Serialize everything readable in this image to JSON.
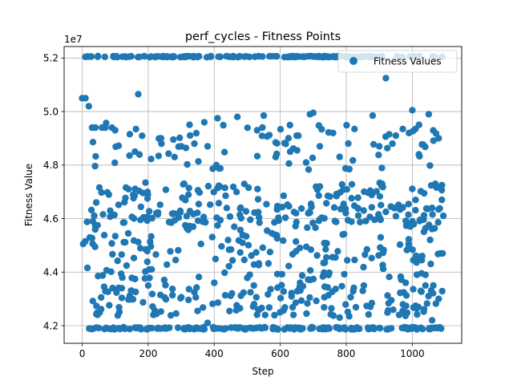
{
  "chart_data": {
    "type": "scatter",
    "title": "perf_cycles - Fitness Points",
    "xlabel": "Step",
    "ylabel": "Fitness Value",
    "offset_label": "1e7",
    "xlim": [
      -54.7,
      1149.7
    ],
    "ylim": [
      4.134,
      5.243
    ],
    "xticks": [
      0,
      200,
      400,
      600,
      800,
      1000
    ],
    "yticks": [
      4.2,
      4.4,
      4.6,
      4.8,
      5.0,
      5.2
    ],
    "ytick_labels": [
      "4.2",
      "4.4",
      "4.6",
      "4.8",
      "5.0",
      "5.2"
    ],
    "grid": true,
    "legend": {
      "position": "upper right",
      "entries": [
        "Fitness Values"
      ]
    },
    "series": [
      {
        "name": "Fitness Values",
        "color": "#1f77b4",
        "bands": [
          {
            "y": 5.205,
            "x0": 0,
            "x1": 1095,
            "n": 150,
            "jitter": 0.002
          },
          {
            "y": 4.19,
            "x0": 15,
            "x1": 1095,
            "n": 170,
            "jitter": 0.004
          },
          {
            "y": 4.295,
            "x0": 30,
            "x1": 1095,
            "n": 150,
            "jitter": 0.06
          },
          {
            "y": 4.5,
            "x0": 0,
            "x1": 1095,
            "n": 200,
            "jitter": 0.13
          },
          {
            "y": 4.66,
            "x0": 10,
            "x1": 1095,
            "n": 170,
            "jitter": 0.075
          },
          {
            "y": 4.87,
            "x0": 20,
            "x1": 1095,
            "n": 80,
            "jitter": 0.09
          }
        ],
        "points": [
          [
            0,
            5.05
          ],
          [
            10,
            5.05
          ],
          [
            20,
            5.02
          ],
          [
            170,
            5.065
          ],
          [
            160,
            4.85
          ],
          [
            30,
            4.94
          ],
          [
            40,
            4.94
          ],
          [
            60,
            4.94
          ],
          [
            70,
            4.94
          ],
          [
            90,
            4.94
          ],
          [
            100,
            4.93
          ],
          [
            410,
            4.975
          ],
          [
            700,
            4.995
          ],
          [
            690,
            4.99
          ],
          [
            550,
            4.985
          ],
          [
            530,
            4.93
          ],
          [
            470,
            4.98
          ],
          [
            920,
            5.125
          ],
          [
            1000,
            5.005
          ],
          [
            1050,
            4.99
          ],
          [
            930,
            4.915
          ],
          [
            950,
            4.91
          ],
          [
            990,
            4.92
          ],
          [
            1080,
            4.9
          ],
          [
            880,
            4.985
          ],
          [
            825,
            4.935
          ],
          [
            900,
            4.87
          ],
          [
            940,
            4.88
          ],
          [
            650,
            4.91
          ],
          [
            760,
            4.92
          ],
          [
            720,
            4.87
          ],
          [
            630,
            4.85
          ],
          [
            280,
            4.83
          ],
          [
            380,
            4.87
          ],
          [
            370,
            4.96
          ],
          [
            240,
            4.88
          ],
          [
            300,
            4.87
          ],
          [
            340,
            4.88
          ],
          [
            720,
            4.72
          ],
          [
            400,
            4.36
          ],
          [
            520,
            4.35
          ],
          [
            660,
            4.36
          ],
          [
            850,
            4.33
          ],
          [
            980,
            4.36
          ],
          [
            1040,
            4.35
          ],
          [
            120,
            4.34
          ],
          [
            200,
            4.35
          ],
          [
            640,
            4.24
          ],
          [
            380,
            4.21
          ],
          [
            780,
            4.23
          ],
          [
            960,
            4.24
          ],
          [
            1060,
            4.22
          ],
          [
            1080,
            4.3
          ],
          [
            1085,
            4.47
          ],
          [
            1092,
            4.47
          ],
          [
            1040,
            4.39
          ],
          [
            1030,
            4.46
          ],
          [
            1060,
            4.64
          ],
          [
            1070,
            4.73
          ],
          [
            1020,
            4.84
          ],
          [
            1010,
            4.67
          ],
          [
            1090,
            4.725
          ]
        ]
      }
    ]
  }
}
